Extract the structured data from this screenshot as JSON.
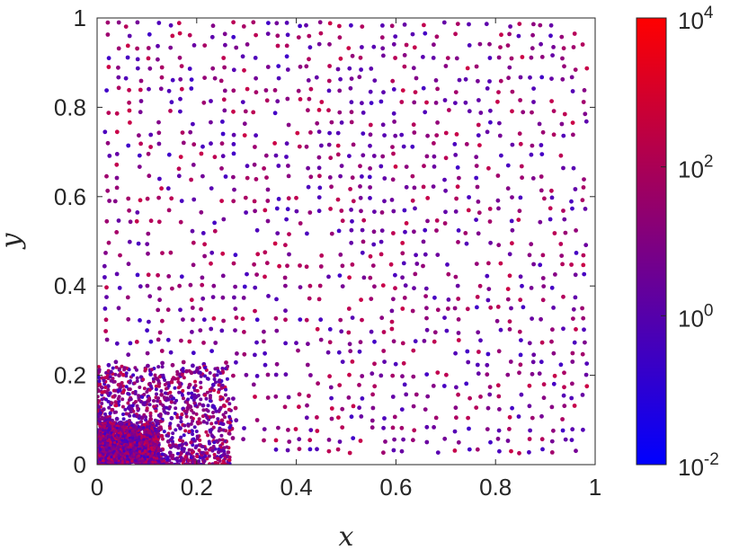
{
  "chart_data": {
    "type": "scatter",
    "title": "",
    "xlabel": "x",
    "ylabel": "y",
    "xlim": [
      0,
      1
    ],
    "ylim": [
      0,
      1
    ],
    "grid": false,
    "legend": "none",
    "x_ticks": [
      "0",
      "0.2",
      "0.4",
      "0.6",
      "0.8",
      "1"
    ],
    "y_ticks": [
      "0",
      "0.2",
      "0.4",
      "0.6",
      "0.8",
      "1"
    ],
    "colorbar": {
      "scale": "log",
      "range": [
        0.01,
        10000
      ],
      "ticks": [
        {
          "base": "10",
          "exp": "4",
          "value": 10000
        },
        {
          "base": "10",
          "exp": "2",
          "value": 100
        },
        {
          "base": "10",
          "exp": "0",
          "value": 1
        },
        {
          "base": "10",
          "exp": "-2",
          "value": 0.01
        }
      ],
      "colors": [
        "#0000ff",
        "#ff0000"
      ]
    },
    "clusters": [
      {
        "x_range": [
          0.0,
          0.1
        ],
        "y_range": [
          0.0,
          0.1
        ],
        "density": "very-high"
      },
      {
        "x_range": [
          0.0,
          0.25
        ],
        "y_range": [
          0.0,
          0.25
        ],
        "density": "high"
      },
      {
        "x_range": [
          0.0,
          1.0
        ],
        "y_range": [
          0.0,
          1.0
        ],
        "density": "grid-aligned"
      }
    ]
  }
}
